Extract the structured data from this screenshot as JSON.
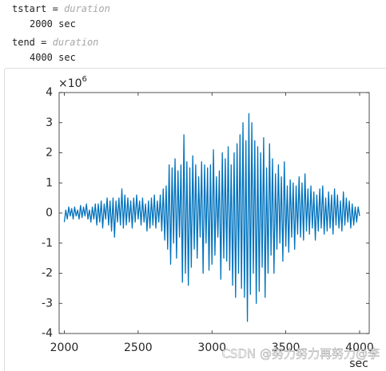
{
  "outputs": [
    {
      "name": "tstart",
      "eq": "=",
      "class": "duration",
      "value": "2000 sec"
    },
    {
      "name": "tend",
      "eq": "=",
      "class": "duration",
      "value": "4000 sec"
    }
  ],
  "chart_data": {
    "type": "line",
    "x": [
      2000,
      2010,
      2020,
      2030,
      2040,
      2050,
      2060,
      2070,
      2080,
      2090,
      2100,
      2110,
      2120,
      2130,
      2140,
      2150,
      2160,
      2170,
      2180,
      2190,
      2200,
      2210,
      2220,
      2230,
      2240,
      2250,
      2260,
      2270,
      2280,
      2290,
      2300,
      2310,
      2320,
      2330,
      2340,
      2350,
      2360,
      2370,
      2380,
      2390,
      2400,
      2410,
      2420,
      2430,
      2440,
      2450,
      2460,
      2470,
      2480,
      2490,
      2500,
      2510,
      2520,
      2530,
      2540,
      2550,
      2560,
      2570,
      2580,
      2590,
      2600,
      2610,
      2620,
      2630,
      2640,
      2650,
      2660,
      2670,
      2680,
      2690,
      2700,
      2710,
      2720,
      2730,
      2740,
      2750,
      2760,
      2770,
      2780,
      2790,
      2800,
      2810,
      2820,
      2830,
      2840,
      2850,
      2860,
      2870,
      2880,
      2890,
      2900,
      2910,
      2920,
      2930,
      2940,
      2950,
      2960,
      2970,
      2980,
      2990,
      3000,
      3010,
      3020,
      3030,
      3040,
      3050,
      3060,
      3070,
      3080,
      3090,
      3100,
      3110,
      3120,
      3130,
      3140,
      3150,
      3160,
      3170,
      3180,
      3190,
      3200,
      3210,
      3220,
      3230,
      3240,
      3250,
      3260,
      3270,
      3280,
      3290,
      3300,
      3310,
      3320,
      3330,
      3340,
      3350,
      3360,
      3370,
      3380,
      3390,
      3400,
      3410,
      3420,
      3430,
      3440,
      3450,
      3460,
      3470,
      3480,
      3490,
      3500,
      3510,
      3520,
      3530,
      3540,
      3550,
      3560,
      3570,
      3580,
      3590,
      3600,
      3610,
      3620,
      3630,
      3640,
      3650,
      3660,
      3670,
      3680,
      3690,
      3700,
      3710,
      3720,
      3730,
      3740,
      3750,
      3760,
      3770,
      3780,
      3790,
      3800,
      3810,
      3820,
      3830,
      3840,
      3850,
      3860,
      3870,
      3880,
      3890,
      3900,
      3910,
      3920,
      3930,
      3940,
      3950,
      3960,
      3970,
      3980,
      3990,
      4000
    ],
    "series": [
      {
        "color": "#0072bd",
        "values": [
          -0.3,
          0.1,
          -0.2,
          0.2,
          -0.1,
          0.15,
          -0.2,
          0.2,
          -0.1,
          0.1,
          -0.2,
          0.25,
          -0.15,
          0.2,
          -0.1,
          0.3,
          -0.2,
          0.1,
          -0.3,
          0.2,
          -0.2,
          0.3,
          -0.4,
          0.3,
          -0.3,
          0.4,
          -0.5,
          0.3,
          -0.2,
          0.5,
          -0.4,
          0.4,
          -0.6,
          0.5,
          -0.8,
          0.4,
          -0.3,
          0.5,
          -0.4,
          0.8,
          -0.5,
          0.6,
          -0.4,
          0.5,
          -0.3,
          0.4,
          -0.5,
          0.5,
          -0.3,
          0.6,
          -0.2,
          0.4,
          -0.4,
          0.5,
          -0.3,
          0.3,
          -0.6,
          0.4,
          -0.5,
          0.5,
          -0.4,
          0.6,
          -0.5,
          0.4,
          -0.3,
          0.6,
          -0.6,
          0.8,
          -0.9,
          0.9,
          -1.2,
          1.6,
          -1.7,
          1.5,
          -1.0,
          1.8,
          -1.5,
          1.4,
          -0.8,
          1.6,
          -2.3,
          2.6,
          -2.0,
          1.7,
          -2.4,
          1.5,
          -1.8,
          1.9,
          -1.2,
          1.6,
          -1.5,
          1.2,
          -0.8,
          1.7,
          -2.0,
          1.6,
          -1.0,
          1.5,
          -1.9,
          1.6,
          -1.7,
          2.1,
          -1.4,
          1.2,
          -0.8,
          1.4,
          -2.2,
          2.0,
          -1.5,
          1.8,
          -1.6,
          2.2,
          -1.9,
          1.6,
          -2.4,
          2.0,
          -2.8,
          2.3,
          -2.0,
          2.6,
          -2.5,
          3.0,
          -2.8,
          2.4,
          -3.6,
          3.3,
          -2.7,
          3.0,
          -2.0,
          2.4,
          -3.0,
          2.2,
          -2.6,
          2.0,
          -1.8,
          2.5,
          -2.8,
          1.5,
          -2.0,
          2.3,
          -1.4,
          1.8,
          -2.0,
          1.3,
          -1.2,
          1.6,
          -1.0,
          1.2,
          -1.6,
          1.7,
          -1.1,
          0.9,
          -1.3,
          1.1,
          -0.8,
          1.0,
          -1.2,
          0.9,
          -0.7,
          1.2,
          -0.8,
          1.0,
          -0.9,
          1.3,
          -0.6,
          0.8,
          -0.7,
          0.9,
          -0.5,
          0.7,
          -0.9,
          0.6,
          -0.6,
          0.8,
          -0.5,
          0.9,
          -0.7,
          0.5,
          -0.6,
          0.7,
          -0.5,
          0.6,
          -0.7,
          0.8,
          -0.4,
          0.6,
          -0.5,
          0.4,
          -0.6,
          0.7,
          -0.4,
          0.5,
          -0.3,
          0.4,
          -0.5,
          0.3,
          -0.4,
          0.2,
          -0.3,
          0.2,
          -0.1
        ]
      }
    ],
    "xlim": [
      1965,
      4065
    ],
    "xticks": [
      2000,
      2500,
      3000,
      3500,
      4000
    ],
    "ylim": [
      -4,
      4
    ],
    "yticks": [
      -4,
      -3,
      -2,
      -1,
      0,
      1,
      2,
      3,
      4
    ],
    "y_exponent_base": "×10",
    "y_exponent": "6",
    "xlabel": "sec",
    "watermark": "CSDN @努力努力再努力@李"
  }
}
